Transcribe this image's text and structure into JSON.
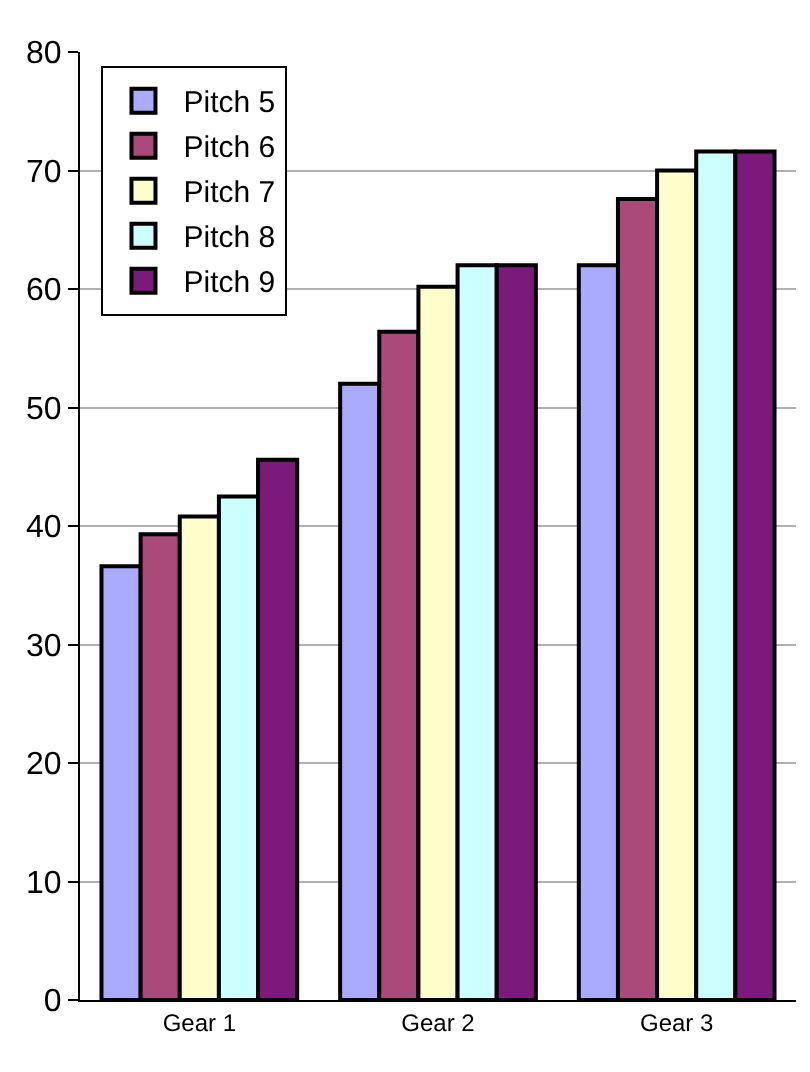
{
  "chart_data": {
    "type": "bar",
    "categories": [
      "Gear 1",
      "Gear 2",
      "Gear 3"
    ],
    "series": [
      {
        "name": "Pitch 5",
        "color": "#aaaaff",
        "values": [
          36.6,
          52,
          62
        ]
      },
      {
        "name": "Pitch 6",
        "color": "#a94a78",
        "values": [
          39.3,
          56.4,
          67.6
        ]
      },
      {
        "name": "Pitch 7",
        "color": "#ffffcc",
        "values": [
          40.8,
          60.2,
          70
        ]
      },
      {
        "name": "Pitch 8",
        "color": "#ccffff",
        "values": [
          42.5,
          62,
          71.6
        ]
      },
      {
        "name": "Pitch 9",
        "color": "#7b1a7b",
        "values": [
          45.6,
          62,
          71.6
        ]
      }
    ],
    "ylim": [
      0,
      80
    ],
    "yticks": [
      0,
      10,
      20,
      30,
      40,
      50,
      60,
      70,
      80
    ],
    "grid": "y",
    "legend": "top left"
  }
}
